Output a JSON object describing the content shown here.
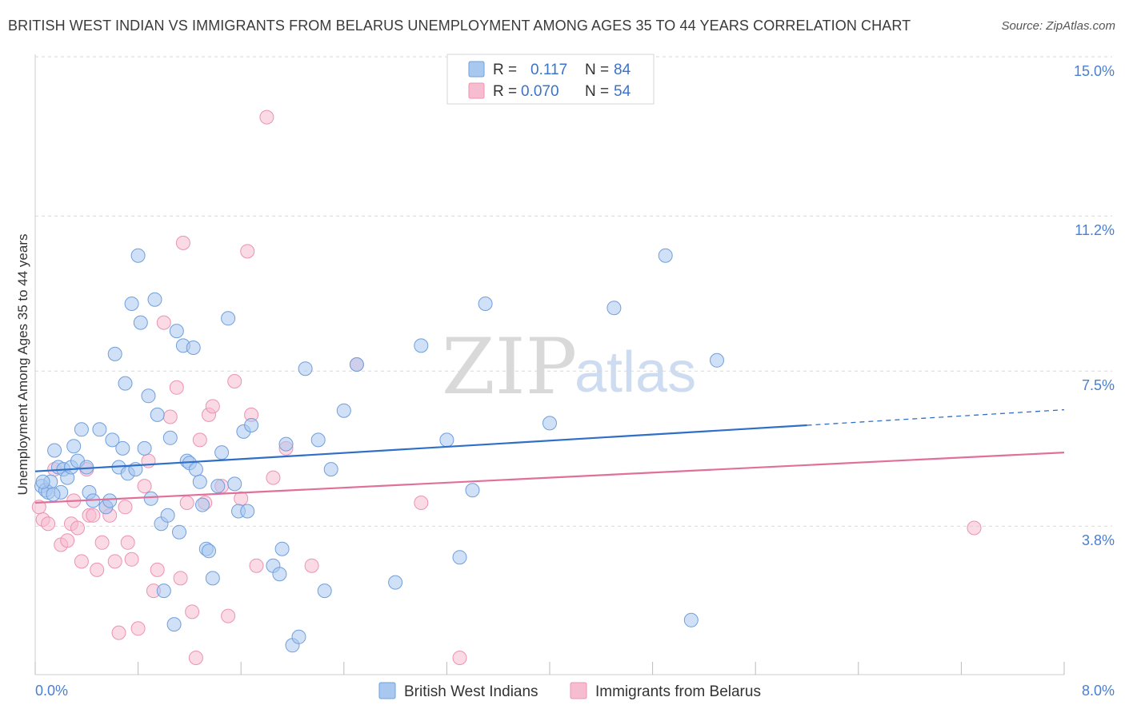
{
  "header": {
    "title": "BRITISH WEST INDIAN VS IMMIGRANTS FROM BELARUS UNEMPLOYMENT AMONG AGES 35 TO 44 YEARS CORRELATION CHART",
    "source": "Source: ZipAtlas.com"
  },
  "watermark": {
    "zip": "ZIP",
    "atlas": "atlas"
  },
  "legend": {
    "rows": [
      {
        "r_label": "R =",
        "r_value": "0.117",
        "n_label": "N =",
        "n_value": "84"
      },
      {
        "r_label": "R =",
        "r_value": "0.070",
        "n_label": "N =",
        "n_value": "54"
      }
    ]
  },
  "colors": {
    "blue_fill": "#a9c8f0",
    "blue_stroke": "#6f9fdc",
    "blue_line": "#2f6fc8",
    "pink_fill": "#f6bcd0",
    "pink_stroke": "#ec93b2",
    "pink_line": "#e0709a",
    "tick_label": "#4a7fd0",
    "grid": "#d8d8d8"
  },
  "chart_data": {
    "type": "scatter",
    "ylabel": "Unemployment Among Ages 35 to 44 years",
    "xlabel": "",
    "x_tick_labels": [
      "0.0%",
      "8.0%"
    ],
    "y_tick_labels": [
      "15.0%",
      "11.2%",
      "7.5%",
      "3.8%"
    ],
    "y_ticks": [
      15.0,
      11.2,
      7.5,
      3.8
    ],
    "xlim": [
      0,
      8.0
    ],
    "ylim": [
      0.6,
      15.4
    ],
    "grid": "horizontal dashed",
    "legend_position": "top-center",
    "series": [
      {
        "name": "British West Indians",
        "r": 0.117,
        "n": 84,
        "trend": {
          "x0": 0.0,
          "y0": 5.45,
          "x1": 6.0,
          "y1": 6.55,
          "x_dash_end": 8.0,
          "y_dash_end": 6.92
        },
        "points": [
          [
            0.05,
            5.1
          ],
          [
            0.08,
            5.0
          ],
          [
            0.1,
            4.95
          ],
          [
            0.12,
            5.2
          ],
          [
            0.15,
            5.95
          ],
          [
            0.18,
            5.55
          ],
          [
            0.2,
            4.95
          ],
          [
            0.22,
            5.5
          ],
          [
            0.25,
            5.3
          ],
          [
            0.28,
            5.55
          ],
          [
            0.3,
            6.05
          ],
          [
            0.33,
            5.7
          ],
          [
            0.36,
            6.45
          ],
          [
            0.4,
            5.55
          ],
          [
            0.42,
            4.95
          ],
          [
            0.45,
            4.75
          ],
          [
            0.5,
            6.45
          ],
          [
            0.55,
            4.6
          ],
          [
            0.58,
            4.75
          ],
          [
            0.6,
            6.2
          ],
          [
            0.62,
            8.25
          ],
          [
            0.65,
            5.55
          ],
          [
            0.68,
            6.0
          ],
          [
            0.7,
            7.55
          ],
          [
            0.72,
            5.4
          ],
          [
            0.75,
            9.45
          ],
          [
            0.78,
            5.5
          ],
          [
            0.8,
            10.6
          ],
          [
            0.82,
            9.0
          ],
          [
            0.85,
            6.0
          ],
          [
            0.88,
            7.25
          ],
          [
            0.9,
            4.8
          ],
          [
            0.93,
            9.55
          ],
          [
            0.95,
            6.8
          ],
          [
            0.98,
            4.2
          ],
          [
            1.0,
            2.6
          ],
          [
            1.03,
            4.4
          ],
          [
            1.05,
            6.25
          ],
          [
            1.08,
            1.8
          ],
          [
            1.1,
            8.8
          ],
          [
            1.12,
            4.0
          ],
          [
            1.15,
            8.45
          ],
          [
            1.18,
            5.7
          ],
          [
            1.2,
            5.65
          ],
          [
            1.23,
            8.4
          ],
          [
            1.25,
            5.5
          ],
          [
            1.28,
            5.2
          ],
          [
            1.3,
            4.65
          ],
          [
            1.33,
            3.6
          ],
          [
            1.35,
            3.55
          ],
          [
            1.38,
            2.9
          ],
          [
            1.42,
            5.1
          ],
          [
            1.45,
            5.9
          ],
          [
            1.5,
            9.1
          ],
          [
            1.55,
            5.15
          ],
          [
            1.58,
            4.5
          ],
          [
            1.62,
            6.4
          ],
          [
            1.65,
            4.5
          ],
          [
            1.68,
            6.55
          ],
          [
            1.85,
            3.2
          ],
          [
            1.9,
            3.0
          ],
          [
            1.92,
            3.6
          ],
          [
            1.95,
            6.1
          ],
          [
            2.0,
            1.3
          ],
          [
            2.05,
            1.5
          ],
          [
            2.1,
            7.9
          ],
          [
            2.2,
            6.2
          ],
          [
            2.25,
            2.6
          ],
          [
            2.3,
            5.5
          ],
          [
            2.4,
            6.9
          ],
          [
            2.5,
            8.0
          ],
          [
            2.8,
            2.8
          ],
          [
            3.0,
            8.45
          ],
          [
            3.2,
            6.2
          ],
          [
            3.3,
            3.4
          ],
          [
            3.4,
            5.0
          ],
          [
            3.5,
            9.45
          ],
          [
            4.0,
            6.6
          ],
          [
            4.5,
            9.35
          ],
          [
            4.9,
            10.6
          ],
          [
            5.1,
            1.9
          ],
          [
            5.3,
            8.1
          ],
          [
            0.06,
            5.2
          ],
          [
            0.14,
            4.9
          ]
        ]
      },
      {
        "name": "Immigrants from Belarus",
        "r": 0.07,
        "n": 54,
        "trend": {
          "x0": 0.0,
          "y0": 4.7,
          "x1": 8.0,
          "y1": 5.9
        },
        "points": [
          [
            0.03,
            4.6
          ],
          [
            0.06,
            4.3
          ],
          [
            0.1,
            4.2
          ],
          [
            0.15,
            5.5
          ],
          [
            0.2,
            3.7
          ],
          [
            0.25,
            3.8
          ],
          [
            0.28,
            4.2
          ],
          [
            0.3,
            4.75
          ],
          [
            0.33,
            4.1
          ],
          [
            0.36,
            3.3
          ],
          [
            0.4,
            5.5
          ],
          [
            0.42,
            4.4
          ],
          [
            0.45,
            4.4
          ],
          [
            0.48,
            3.1
          ],
          [
            0.52,
            3.75
          ],
          [
            0.55,
            4.6
          ],
          [
            0.58,
            4.4
          ],
          [
            0.62,
            3.3
          ],
          [
            0.65,
            1.6
          ],
          [
            0.7,
            4.6
          ],
          [
            0.72,
            3.75
          ],
          [
            0.75,
            3.35
          ],
          [
            0.8,
            1.7
          ],
          [
            0.85,
            5.1
          ],
          [
            0.88,
            5.7
          ],
          [
            0.92,
            2.6
          ],
          [
            0.95,
            3.1
          ],
          [
            1.0,
            9.0
          ],
          [
            1.05,
            6.75
          ],
          [
            1.1,
            7.45
          ],
          [
            1.13,
            2.9
          ],
          [
            1.15,
            10.9
          ],
          [
            1.18,
            4.7
          ],
          [
            1.22,
            2.1
          ],
          [
            1.25,
            1.0
          ],
          [
            1.28,
            6.2
          ],
          [
            1.32,
            4.7
          ],
          [
            1.35,
            6.8
          ],
          [
            1.38,
            7.0
          ],
          [
            1.45,
            5.1
          ],
          [
            1.5,
            2.0
          ],
          [
            1.55,
            7.6
          ],
          [
            1.6,
            4.8
          ],
          [
            1.65,
            10.7
          ],
          [
            1.68,
            6.8
          ],
          [
            1.72,
            3.2
          ],
          [
            1.8,
            13.9
          ],
          [
            1.85,
            5.3
          ],
          [
            1.95,
            6.0
          ],
          [
            2.15,
            3.2
          ],
          [
            2.5,
            8.0
          ],
          [
            3.0,
            4.7
          ],
          [
            3.3,
            1.0
          ],
          [
            7.3,
            4.1
          ]
        ]
      }
    ]
  },
  "bottom_legend": {
    "items": [
      "British West Indians",
      "Immigrants from Belarus"
    ]
  }
}
